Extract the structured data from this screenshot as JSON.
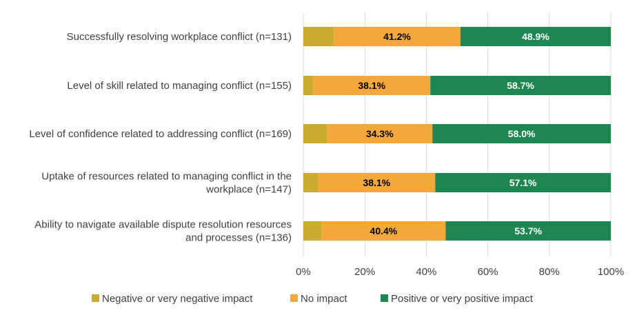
{
  "chart_data": {
    "type": "bar",
    "orientation": "horizontal",
    "stacked": true,
    "categories": [
      [
        "Successfully resolving workplace conflict (n=131)"
      ],
      [
        "Level of skill related to managing conflict (n=155)"
      ],
      [
        "Level of confidence related to addressing conflict (n=169)"
      ],
      [
        "Uptake of resources related to managing conflict in the",
        "workplace (n=147)"
      ],
      [
        "Ability to navigate available dispute resolution resources",
        "and processes (n=136)"
      ]
    ],
    "series": [
      {
        "name": "Negative or very negative impact",
        "color": "#c9ac2f",
        "values": [
          9.9,
          3.2,
          7.7,
          4.8,
          5.9
        ],
        "labels": [
          "",
          "",
          "",
          "",
          ""
        ],
        "label_color": "#000000"
      },
      {
        "name": "No impact",
        "color": "#f4a83a",
        "values": [
          41.2,
          38.1,
          34.3,
          38.1,
          40.4
        ],
        "labels": [
          "41.2%",
          "38.1%",
          "34.3%",
          "38.1%",
          "40.4%"
        ],
        "label_color": "#000000"
      },
      {
        "name": "Positive or very positive impact",
        "color": "#1e8751",
        "values": [
          48.9,
          58.7,
          58.0,
          57.1,
          53.7
        ],
        "labels": [
          "48.9%",
          "58.7%",
          "58.0%",
          "57.1%",
          "53.7%"
        ],
        "label_color": "#ffffff"
      }
    ],
    "xlim": [
      0,
      100
    ],
    "x_ticks": [
      "0%",
      "20%",
      "40%",
      "60%",
      "80%",
      "100%"
    ],
    "x_tick_values": [
      0,
      20,
      40,
      60,
      80,
      100
    ],
    "grid": true,
    "legend_position": "bottom",
    "title": "",
    "xlabel": "",
    "ylabel": ""
  }
}
